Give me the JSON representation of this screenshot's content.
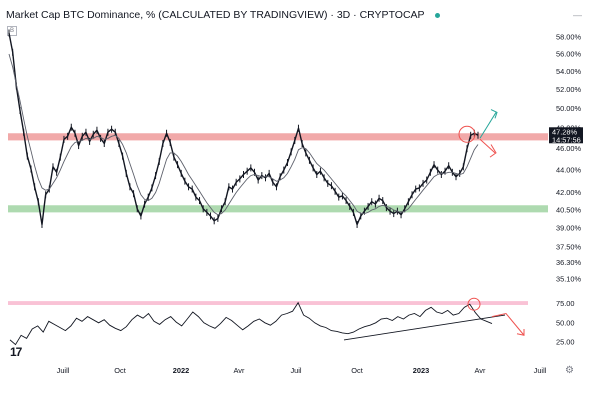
{
  "header": {
    "title": "Market Cap BTC Dominance, % (CALCULATED BY TRADINGVIEW) · 3D · CRYPTOCAP",
    "status_color": "#26a69a"
  },
  "indicator_chip": "B",
  "price_box": {
    "line1": "47.28%",
    "line2": "14:57:56",
    "color": "#131722"
  },
  "icons": {
    "top_right": "minus-icon",
    "logo": "tradingview-logo-icon",
    "settings": "gear-icon"
  },
  "colors": {
    "resistance_zone": "#ef9a9a",
    "support_zone": "#a5d6a7",
    "price_line": "#131722",
    "ma_line": "#5d606b",
    "arrow_up": "#26a69a",
    "arrow_down": "#ef5350",
    "oscillator": "#131722",
    "osc_band": "#f8bbd0"
  },
  "chart_data": [
    {
      "type": "line",
      "title": "Market Cap BTC Dominance, % (CALCULATED BY TRADINGVIEW) · 3D · CRYPTOCAP",
      "y_scale": "log",
      "ylim": [
        34.8,
        58.5
      ],
      "y_ticks": [
        "58.00%",
        "56.00%",
        "54.00%",
        "52.00%",
        "50.00%",
        "48.00%",
        "46.00%",
        "44.00%",
        "42.00%",
        "40.50%",
        "39.00%",
        "37.50%",
        "36.30%",
        "35.10%"
      ],
      "x_ticks": [
        "Juill",
        "Oct",
        "2022",
        "Avr",
        "Juil",
        "Oct",
        "2023",
        "Avr",
        "Juill"
      ],
      "x_ticks_bold": [
        "2022",
        "2023"
      ],
      "last_value_label": "47.28%",
      "resistance_zone": [
        46.8,
        47.5
      ],
      "support_zone": [
        40.3,
        40.9
      ],
      "series": [
        {
          "values": [
            58.5,
            56.2,
            52.4,
            49.8,
            47.6,
            45.3,
            44.1,
            42.5,
            41.2,
            39.3,
            41.8,
            42.3,
            44.3,
            43.8,
            45.2,
            46.9,
            47.2,
            48.1,
            47.5,
            46.3,
            47.2,
            47.6,
            46.7,
            47.4,
            47.8,
            47.0,
            46.5,
            47.6,
            47.9,
            47.6,
            46.5,
            45.3,
            43.7,
            42.5,
            41.9,
            40.6,
            40.0,
            41.0,
            41.6,
            42.4,
            43.5,
            44.8,
            46.5,
            47.5,
            46.6,
            45.2,
            44.5,
            43.7,
            43.0,
            42.5,
            42.3,
            41.6,
            41.3,
            40.6,
            40.3,
            40.0,
            39.6,
            39.8,
            40.6,
            41.2,
            42.5,
            42.3,
            42.9,
            43.2,
            43.6,
            43.9,
            44.2,
            43.8,
            43.1,
            43.5,
            43.3,
            43.7,
            42.9,
            42.5,
            43.4,
            44.0,
            44.7,
            45.7,
            46.8,
            48.0,
            46.5,
            45.6,
            44.9,
            44.2,
            43.6,
            43.9,
            43.3,
            42.8,
            42.6,
            42.1,
            41.6,
            41.7,
            41.3,
            40.8,
            40.3,
            39.3,
            40.0,
            40.4,
            40.8,
            41.2,
            41.0,
            41.5,
            41.3,
            40.7,
            40.4,
            40.2,
            40.4,
            40.1,
            40.6,
            41.2,
            41.8,
            42.3,
            42.4,
            42.8,
            43.1,
            43.8,
            44.5,
            44.0,
            43.6,
            43.9,
            44.4,
            43.8,
            43.4,
            43.7,
            44.3,
            46.0,
            47.3,
            47.5,
            47.3
          ]
        },
        {
          "values": [
            56.0,
            54.5,
            52.6,
            50.8,
            48.9,
            47.2,
            45.8,
            44.4,
            43.2,
            42.4,
            42.2,
            42.3,
            42.8,
            43.3,
            44.0,
            44.8,
            45.5,
            46.2,
            46.6,
            46.7,
            46.8,
            47.0,
            46.9,
            47.0,
            47.2,
            47.1,
            46.9,
            47.0,
            47.2,
            47.3,
            47.0,
            46.4,
            45.6,
            44.6,
            43.6,
            42.6,
            41.8,
            41.4,
            41.3,
            41.5,
            42.0,
            42.8,
            43.9,
            45.0,
            45.6,
            45.6,
            45.3,
            44.8,
            44.2,
            43.6,
            43.1,
            42.6,
            42.1,
            41.6,
            41.1,
            40.7,
            40.3,
            40.1,
            40.2,
            40.5,
            41.0,
            41.5,
            42.0,
            42.4,
            42.8,
            43.2,
            43.5,
            43.6,
            43.5,
            43.4,
            43.4,
            43.4,
            43.2,
            43.0,
            43.1,
            43.3,
            43.7,
            44.3,
            45.0,
            45.9,
            46.1,
            46.0,
            45.6,
            45.1,
            44.6,
            44.3,
            44.0,
            43.6,
            43.2,
            42.8,
            42.4,
            42.0,
            41.7,
            41.3,
            40.9,
            40.4,
            40.2,
            40.2,
            40.3,
            40.5,
            40.6,
            40.8,
            40.9,
            40.8,
            40.7,
            40.5,
            40.4,
            40.3,
            40.4,
            40.6,
            41.0,
            41.4,
            41.8,
            42.2,
            42.6,
            43.0,
            43.4,
            43.6,
            43.7,
            43.7,
            43.8,
            43.8,
            43.7,
            43.6,
            43.7,
            44.3,
            45.1,
            45.9,
            46.4
          ]
        }
      ]
    },
    {
      "type": "line",
      "ylim": [
        15,
        82
      ],
      "y_ticks": [
        "75.00",
        "50.00",
        "25.00"
      ],
      "overbought_band": [
        73,
        78
      ],
      "series": [
        {
          "values": [
            28,
            22,
            34,
            30,
            42,
            46,
            38,
            52,
            48,
            44,
            40,
            46,
            56,
            52,
            58,
            54,
            50,
            54,
            47,
            43,
            40,
            45,
            54,
            60,
            56,
            62,
            52,
            48,
            54,
            58,
            51,
            46,
            55,
            64,
            58,
            50,
            46,
            43,
            49,
            57,
            53,
            47,
            41,
            46,
            52,
            55,
            50,
            47,
            52,
            60,
            62,
            65,
            76,
            60,
            56,
            50,
            46,
            44,
            40,
            39,
            37,
            36,
            38,
            42,
            45,
            47,
            50,
            55,
            56,
            53,
            58,
            55,
            60,
            62,
            58,
            66,
            70,
            64,
            62,
            66,
            60,
            62,
            70,
            74,
            63,
            55,
            52,
            49
          ]
        }
      ]
    }
  ]
}
